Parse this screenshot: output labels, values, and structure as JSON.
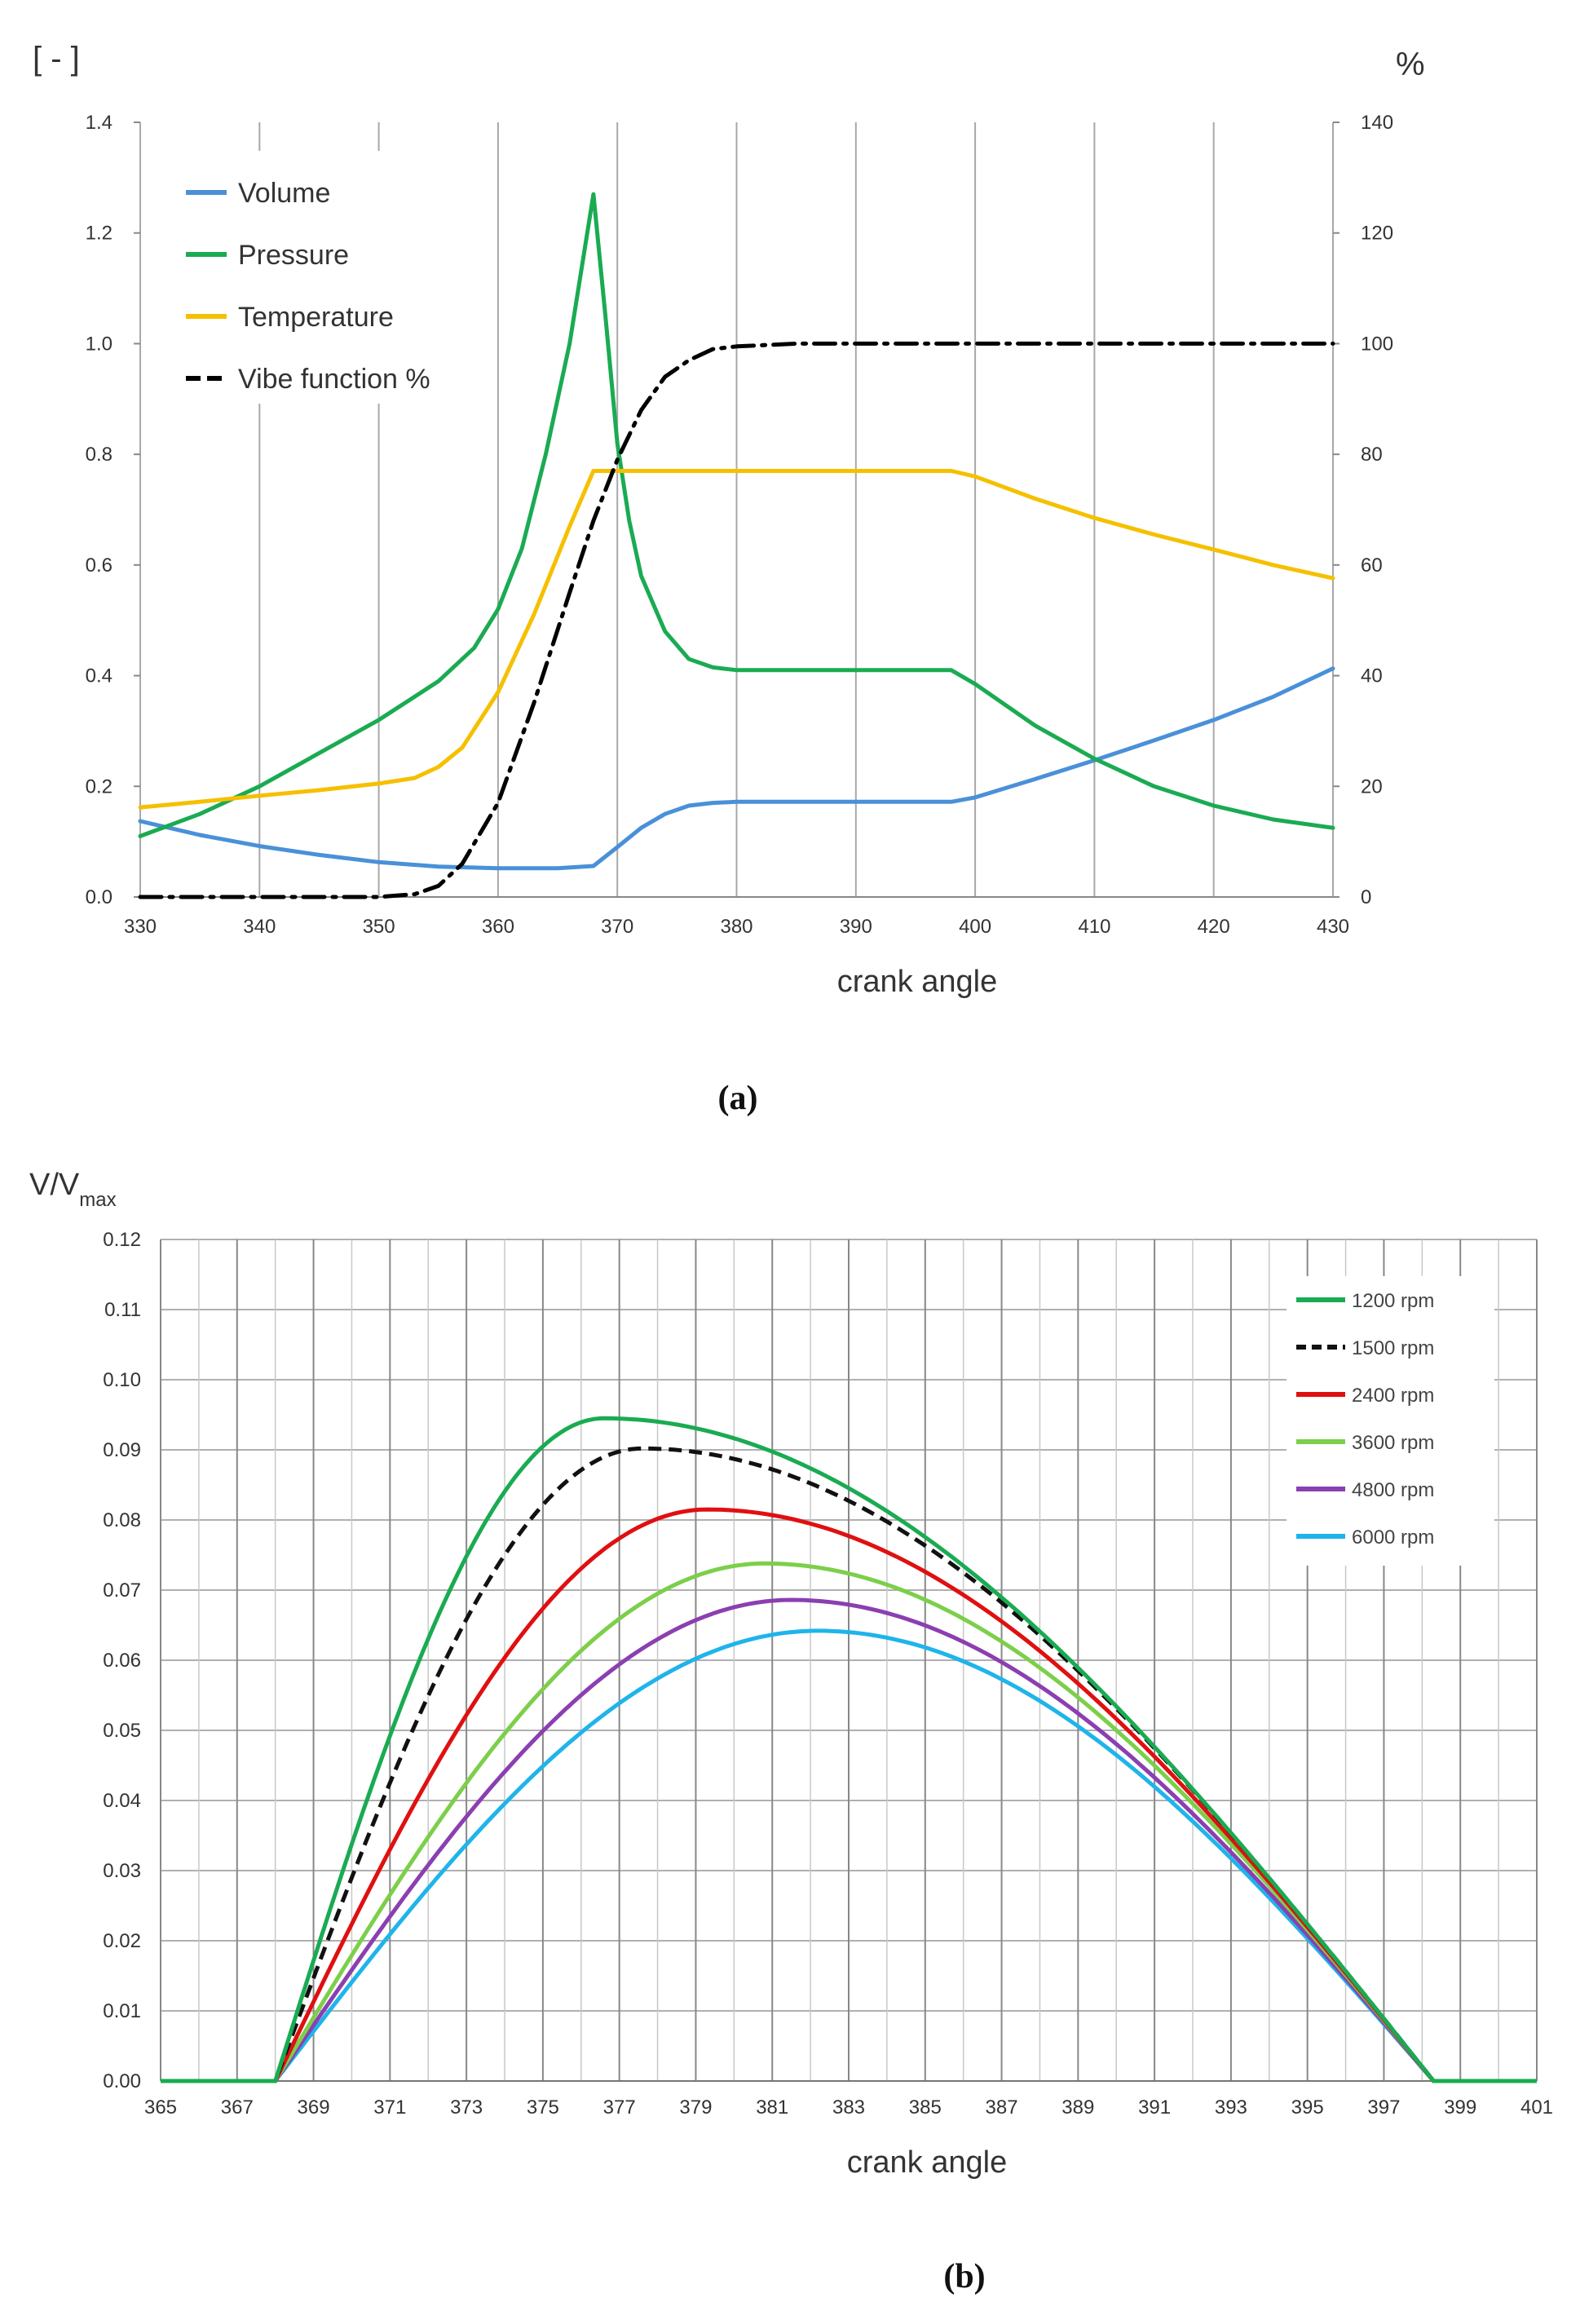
{
  "chart_data": [
    {
      "id": "a",
      "type": "line",
      "panel_label": "(a)",
      "xlabel": "crank angle",
      "ylabel_left": "[ - ]",
      "ylabel_right": "%",
      "x_ticks": [
        "330",
        "340",
        "350",
        "360",
        "370",
        "380",
        "390",
        "400",
        "410",
        "420",
        "430"
      ],
      "y_ticks_left": [
        "0.0",
        "0.2",
        "0.4",
        "0.6",
        "0.8",
        "1.0",
        "1.2",
        "1.4"
      ],
      "y_ticks_right": [
        "0",
        "20",
        "40",
        "60",
        "80",
        "100",
        "120",
        "140"
      ],
      "xlim": [
        330,
        430
      ],
      "ylim_left": [
        0,
        1.4
      ],
      "ylim_right": [
        0,
        140
      ],
      "grid": "vertical",
      "legend_position": "top-left",
      "series": [
        {
          "name": "Volume",
          "color": "#4a90d9",
          "dash": "solid",
          "axis": "left",
          "x": [
            330,
            335,
            340,
            345,
            350,
            355,
            360,
            365,
            368,
            370,
            372,
            374,
            376,
            378,
            380,
            385,
            390,
            398,
            400,
            405,
            410,
            415,
            420,
            425,
            430
          ],
          "y": [
            0.137,
            0.112,
            0.092,
            0.076,
            0.063,
            0.055,
            0.052,
            0.052,
            0.056,
            0.09,
            0.125,
            0.15,
            0.165,
            0.17,
            0.172,
            0.172,
            0.172,
            0.172,
            0.18,
            0.213,
            0.247,
            0.283,
            0.32,
            0.362,
            0.413
          ]
        },
        {
          "name": "Pressure",
          "color": "#1aab52",
          "dash": "solid",
          "axis": "left",
          "x": [
            330,
            335,
            340,
            345,
            350,
            355,
            358,
            360,
            362,
            364,
            366,
            368,
            369,
            370,
            371,
            372,
            374,
            376,
            378,
            380,
            385,
            390,
            398,
            400,
            405,
            410,
            415,
            420,
            425,
            430
          ],
          "y": [
            0.11,
            0.15,
            0.2,
            0.26,
            0.32,
            0.39,
            0.45,
            0.52,
            0.63,
            0.8,
            1.0,
            1.27,
            1.05,
            0.82,
            0.68,
            0.58,
            0.48,
            0.43,
            0.415,
            0.41,
            0.41,
            0.41,
            0.41,
            0.385,
            0.31,
            0.25,
            0.2,
            0.165,
            0.14,
            0.125
          ]
        },
        {
          "name": "Temperature",
          "color": "#f5c000",
          "dash": "solid",
          "axis": "left",
          "x": [
            330,
            335,
            340,
            345,
            350,
            353,
            355,
            357,
            360,
            363,
            366,
            368,
            370,
            375,
            380,
            390,
            398,
            400,
            405,
            410,
            415,
            420,
            425,
            430
          ],
          "y": [
            0.162,
            0.172,
            0.183,
            0.193,
            0.205,
            0.215,
            0.235,
            0.27,
            0.37,
            0.51,
            0.67,
            0.77,
            0.77,
            0.77,
            0.77,
            0.77,
            0.77,
            0.76,
            0.72,
            0.685,
            0.655,
            0.628,
            0.6,
            0.576
          ]
        },
        {
          "name": "Vibe function %",
          "color": "#000000",
          "dash": "dashdot",
          "axis": "right",
          "x": [
            330,
            340,
            350,
            353,
            355,
            357,
            360,
            363,
            366,
            368,
            370,
            372,
            374,
            376,
            378,
            380,
            385,
            390,
            400,
            410,
            420,
            430
          ],
          "y": [
            0,
            0,
            0,
            0.5,
            2,
            6,
            17,
            35,
            55,
            68,
            79,
            88,
            94,
            97,
            99,
            99.5,
            100,
            100,
            100,
            100,
            100,
            100
          ]
        }
      ]
    },
    {
      "id": "b",
      "type": "line",
      "panel_label": "(b)",
      "xlabel": "crank angle",
      "ylabel": "V/V",
      "ylabel_sub": "max",
      "x_ticks": [
        "365",
        "367",
        "369",
        "371",
        "373",
        "375",
        "377",
        "379",
        "381",
        "383",
        "385",
        "387",
        "389",
        "391",
        "393",
        "395",
        "397",
        "399",
        "401"
      ],
      "y_ticks": [
        "0.00",
        "0.01",
        "0.02",
        "0.03",
        "0.04",
        "0.05",
        "0.06",
        "0.07",
        "0.08",
        "0.09",
        "0.10",
        "0.11",
        "0.12"
      ],
      "xlim": [
        365,
        401
      ],
      "ylim": [
        0,
        0.12
      ],
      "grid": "both",
      "legend_position": "top-right",
      "x_zero": 368,
      "x_end": 398.3,
      "series": [
        {
          "name": "1200 rpm",
          "color": "#1aab52",
          "dash": "solid",
          "peak_x": 376.6,
          "peak_y": 0.0945
        },
        {
          "name": "1500 rpm",
          "color": "#111111",
          "dash": "dashed",
          "peak_x": 377.6,
          "peak_y": 0.0902
        },
        {
          "name": "2400 rpm",
          "color": "#e01010",
          "dash": "solid",
          "peak_x": 379.3,
          "peak_y": 0.0815
        },
        {
          "name": "3600 rpm",
          "color": "#7ccf4a",
          "dash": "solid",
          "peak_x": 380.8,
          "peak_y": 0.0738
        },
        {
          "name": "4800 rpm",
          "color": "#8b3fb0",
          "dash": "solid",
          "peak_x": 381.5,
          "peak_y": 0.0686
        },
        {
          "name": "6000 rpm",
          "color": "#1fb4ea",
          "dash": "solid",
          "peak_x": 382.2,
          "peak_y": 0.0642
        }
      ]
    }
  ]
}
